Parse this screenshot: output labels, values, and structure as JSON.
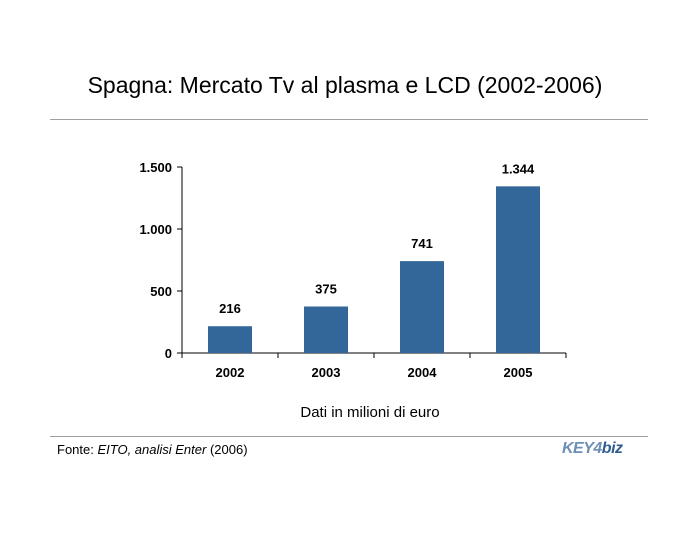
{
  "title": "Spagna: Mercato Tv al plasma e LCD (2002-2006)",
  "note": "Dati in milioni di euro",
  "source": {
    "prefix": "Fonte: ",
    "italic": "EITO, analisi Enter",
    "suffix": " (2006)"
  },
  "logo": {
    "part1": "KEY4",
    "part2": "biz"
  },
  "colors": {
    "bar": "#336699",
    "axis": "#000000",
    "rule": "#a0a0a0"
  },
  "chart_data": {
    "type": "bar",
    "categories": [
      "2002",
      "2003",
      "2004",
      "2005"
    ],
    "values": [
      216,
      375,
      741,
      1344
    ],
    "value_labels": [
      "216",
      "375",
      "741",
      "1.344"
    ],
    "yticks": [
      0,
      500,
      1000,
      1500
    ],
    "ytick_labels": [
      "0",
      "500",
      "1.000",
      "1.500"
    ],
    "ylim": [
      0,
      1500
    ],
    "grid": false,
    "legend": "none"
  }
}
